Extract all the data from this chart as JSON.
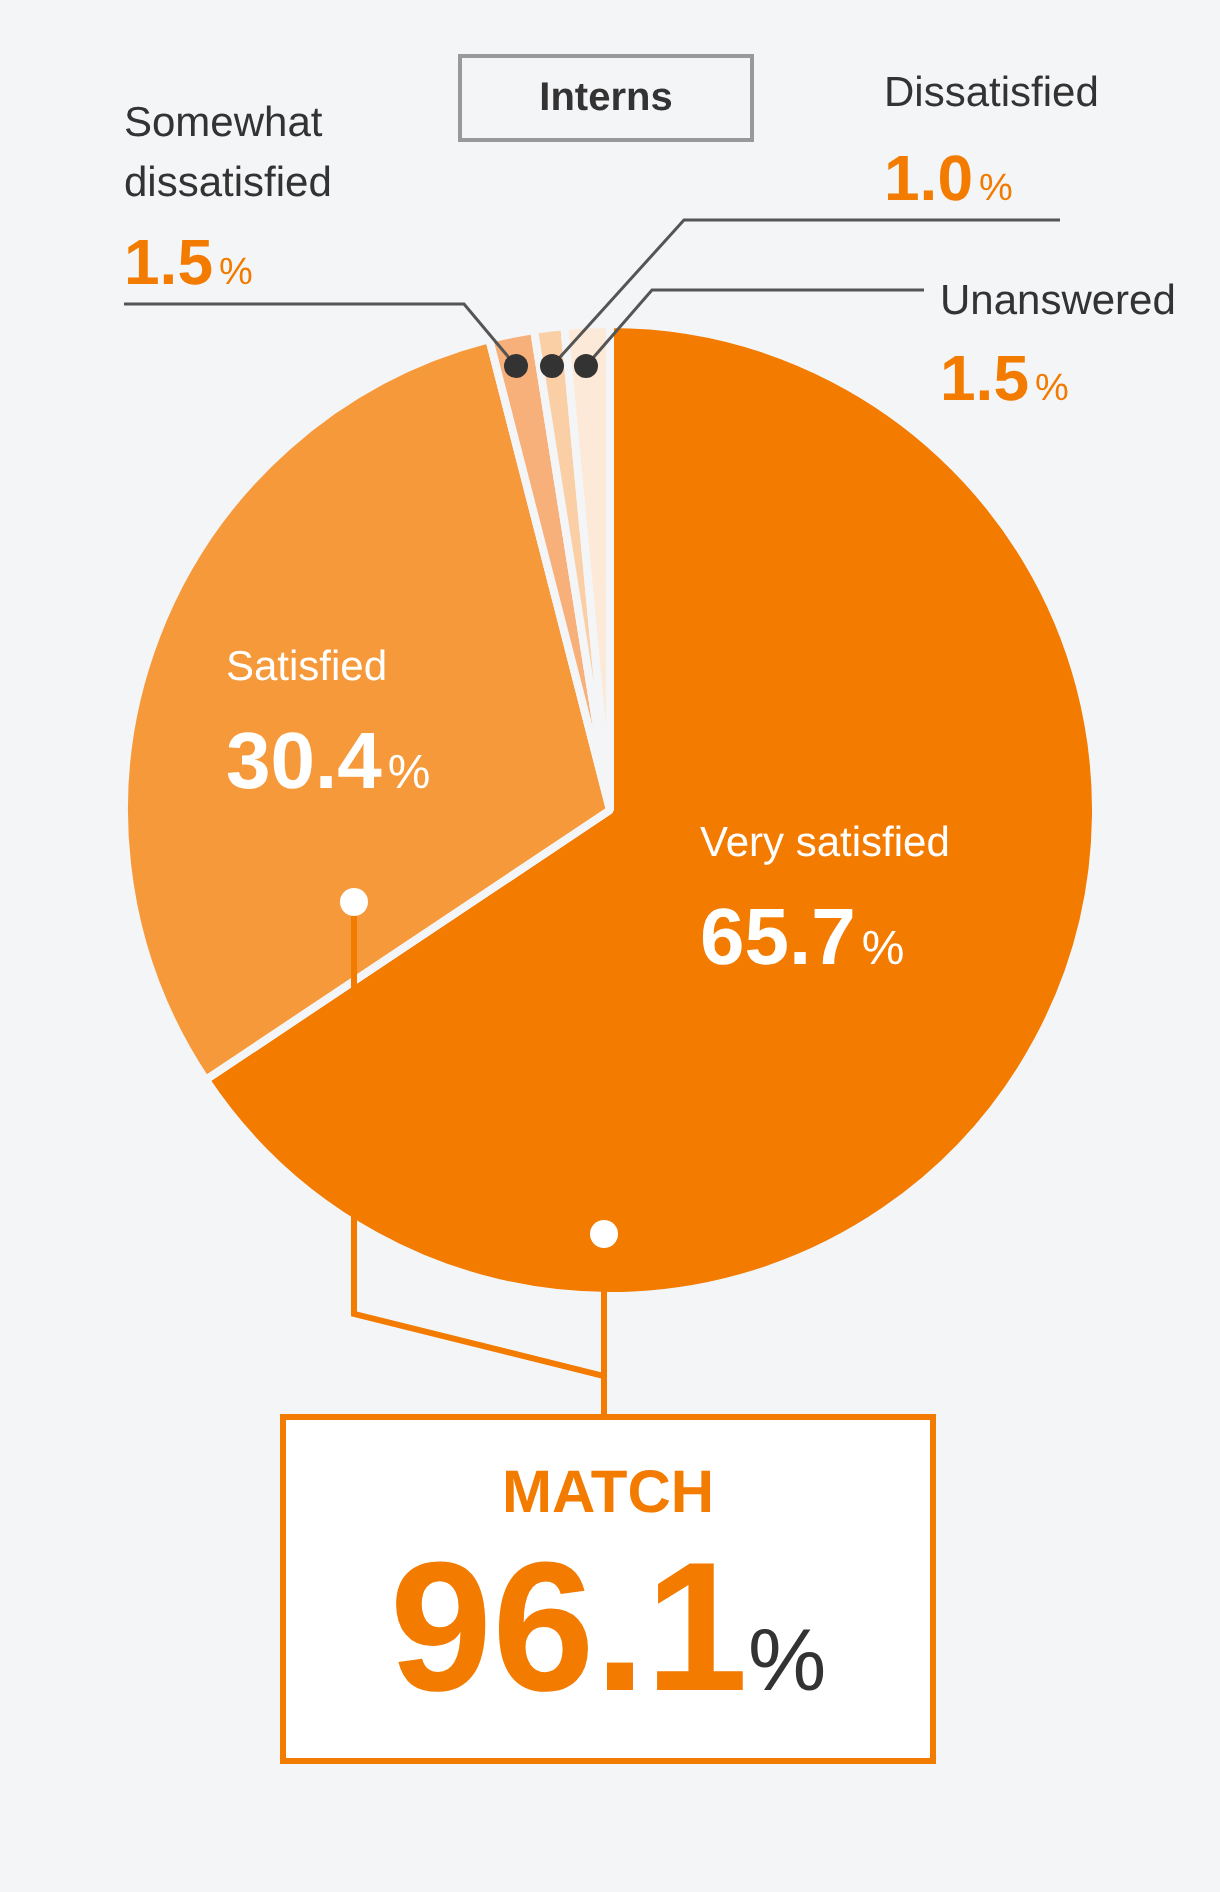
{
  "chart_data": {
    "type": "pie",
    "title": "Interns",
    "categories": [
      "Very satisfied",
      "Satisfied",
      "Somewhat dissatisfied",
      "Dissatisfied",
      "Unanswered"
    ],
    "values": [
      65.7,
      30.4,
      1.5,
      1.0,
      1.5
    ],
    "colors": [
      "#f27b00",
      "#f6993a",
      "#f8b07a",
      "#fbcfa6",
      "#fde9d8"
    ],
    "value_labels": [
      "65.7%",
      "30.4%",
      "1.5%",
      "1.0%",
      "1.5%"
    ],
    "legend": false,
    "annotations": [
      "MATCH",
      "96.1%"
    ]
  }
}
